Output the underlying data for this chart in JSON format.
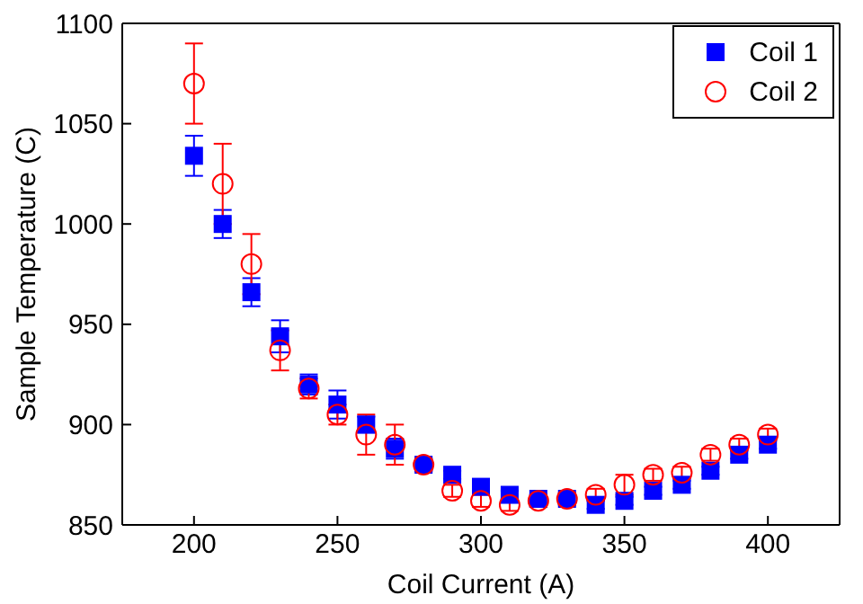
{
  "chart_data": {
    "type": "scatter",
    "xlabel": "Coil Current (A)",
    "ylabel": "Sample Temperature (C)",
    "x": [
      200,
      210,
      220,
      230,
      240,
      250,
      260,
      270,
      280,
      290,
      300,
      310,
      320,
      330,
      340,
      350,
      360,
      370,
      380,
      390,
      400
    ],
    "xlim": [
      175,
      425
    ],
    "xticks": [
      200,
      250,
      300,
      350,
      400
    ],
    "ylim": [
      850,
      1100
    ],
    "yticks": [
      850,
      900,
      950,
      1000,
      1050,
      1100
    ],
    "legend": "top right",
    "series": [
      {
        "name": "Coil 1",
        "color": "#0000ff",
        "marker": "square",
        "values": [
          1034,
          1000,
          966,
          944,
          920,
          910,
          900,
          888,
          880,
          875,
          869,
          865,
          863,
          863,
          860,
          862,
          867,
          870,
          877,
          885,
          890
        ],
        "errors": [
          10,
          7,
          7,
          8,
          5,
          7,
          4,
          5,
          3,
          2,
          2,
          2,
          2,
          2,
          2,
          2,
          2,
          2,
          2,
          2,
          2
        ]
      },
      {
        "name": "Coil 2",
        "color": "#ff0000",
        "marker": "circle",
        "values": [
          1070,
          1020,
          980,
          937,
          918,
          905,
          895,
          890,
          880,
          867,
          862,
          860,
          862,
          863,
          865,
          870,
          875,
          876,
          885,
          890,
          895
        ],
        "errors": [
          20,
          20,
          15,
          10,
          5,
          5,
          10,
          10,
          3,
          3,
          3,
          3,
          3,
          3,
          3,
          5,
          3,
          3,
          3,
          3,
          3
        ]
      }
    ]
  }
}
